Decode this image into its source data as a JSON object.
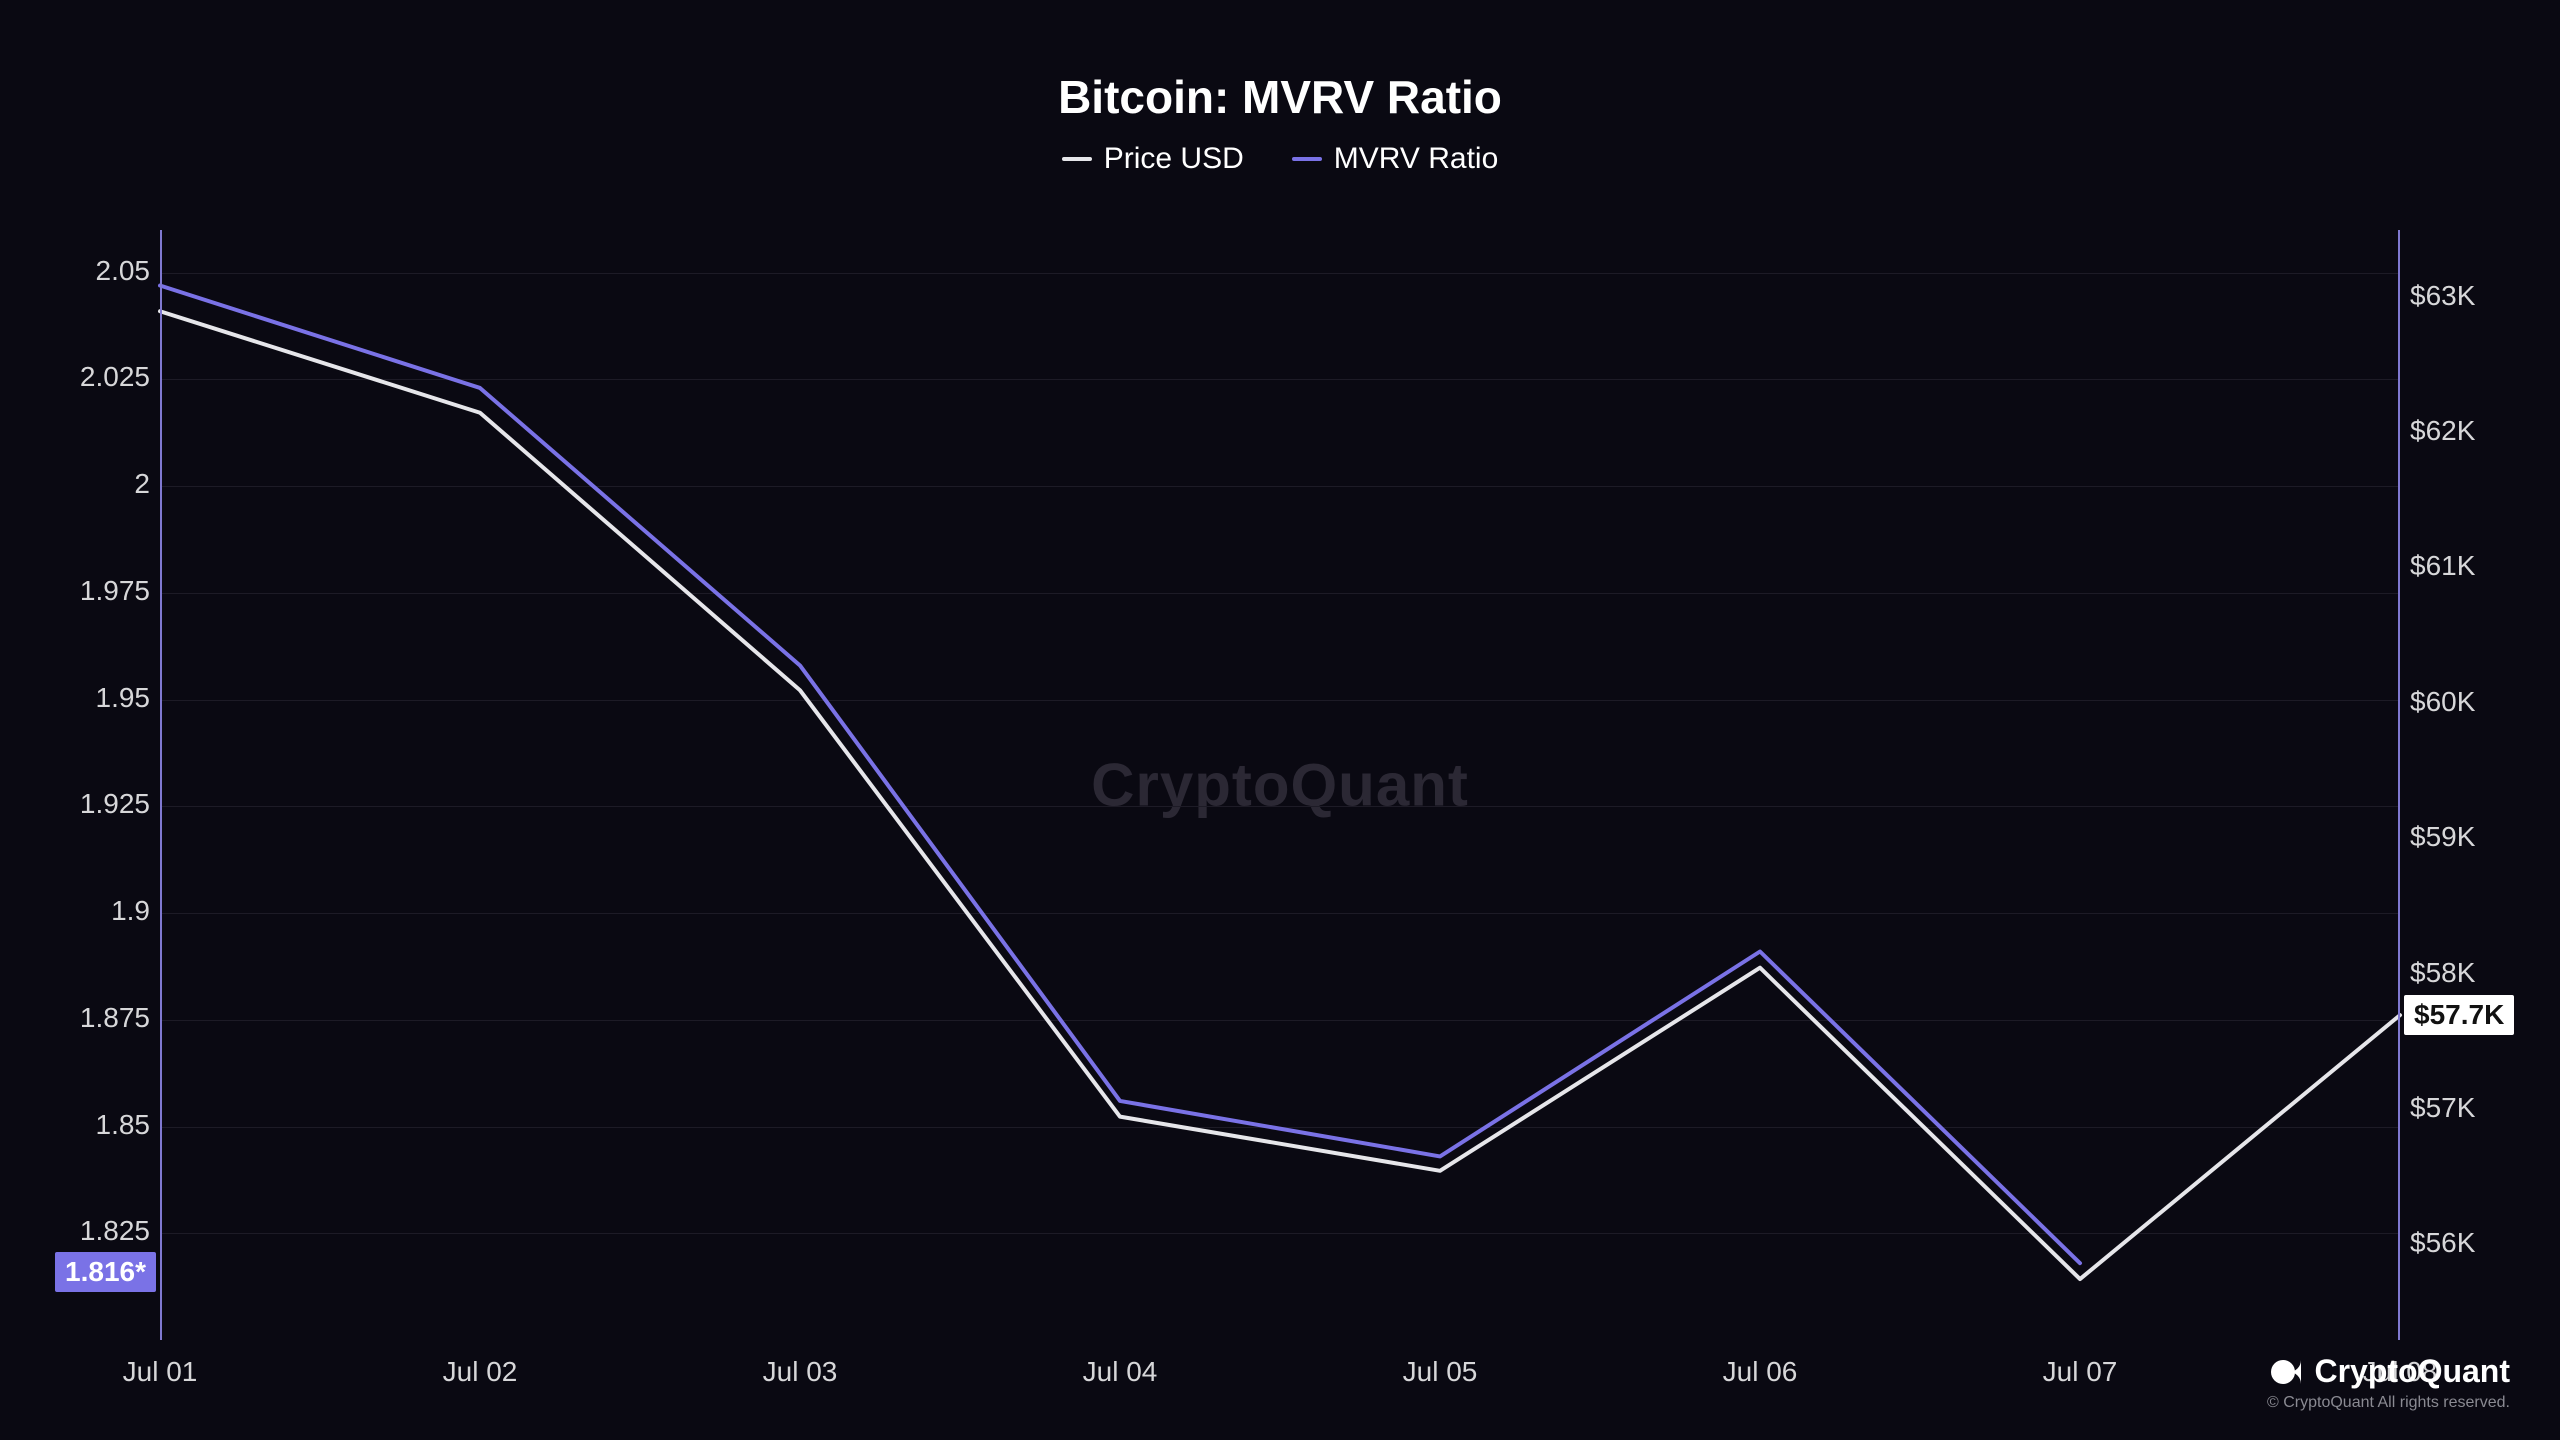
{
  "chart": {
    "type": "line",
    "title": "Bitcoin: MVRV Ratio",
    "background_color": "#0a0912",
    "grid_color": "#1d1b26",
    "axis_border_color": "#8079d1",
    "text_color": "#d7d7d9",
    "title_fontsize": 46,
    "label_fontsize": 28,
    "legend_fontsize": 30,
    "legend": [
      {
        "label": "Price USD",
        "color": "#e6e6ea"
      },
      {
        "label": "MVRV Ratio",
        "color": "#7a72e6"
      }
    ],
    "x_categories": [
      "Jul 01",
      "Jul 02",
      "Jul 03",
      "Jul 04",
      "Jul 05",
      "Jul 06",
      "Jul 07",
      "Jul 08"
    ],
    "y_left": {
      "min": 1.8,
      "max": 2.06,
      "ticks": [
        2.05,
        2.025,
        2.0,
        1.975,
        1.95,
        1.925,
        1.9,
        1.875,
        1.85,
        1.825
      ],
      "tick_labels": [
        "2.05",
        "2.025",
        "2",
        "1.975",
        "1.95",
        "1.925",
        "1.9",
        "1.875",
        "1.85",
        "1.825"
      ]
    },
    "y_right": {
      "min": 55.3,
      "max": 63.5,
      "ticks": [
        63,
        62,
        61,
        60,
        59,
        58,
        57,
        56
      ],
      "tick_labels": [
        "$63K",
        "$62K",
        "$61K",
        "$60K",
        "$59K",
        "$58K",
        "$57K",
        "$56K"
      ]
    },
    "series": [
      {
        "name": "MVRV Ratio",
        "axis": "left",
        "color": "#7a72e6",
        "line_width": 4,
        "values": [
          2.047,
          2.023,
          1.958,
          1.856,
          1.843,
          1.891,
          1.818,
          1.816
        ],
        "extend_to_last": 6
      },
      {
        "name": "Price USD",
        "axis": "right",
        "color": "#e6e6ea",
        "line_width": 4,
        "values": [
          62.9,
          62.15,
          60.1,
          56.95,
          56.55,
          58.05,
          55.75,
          57.7
        ]
      }
    ],
    "current_left": {
      "value": "1.816*",
      "bg": "#7a72e6",
      "fg": "#ffffff"
    },
    "current_right": {
      "value": "$57.7K",
      "bg": "#ffffff",
      "fg": "#111111"
    },
    "watermark": "CryptoQuant",
    "brand": "CryptoQuant",
    "copyright": "© CryptoQuant All rights reserved."
  }
}
